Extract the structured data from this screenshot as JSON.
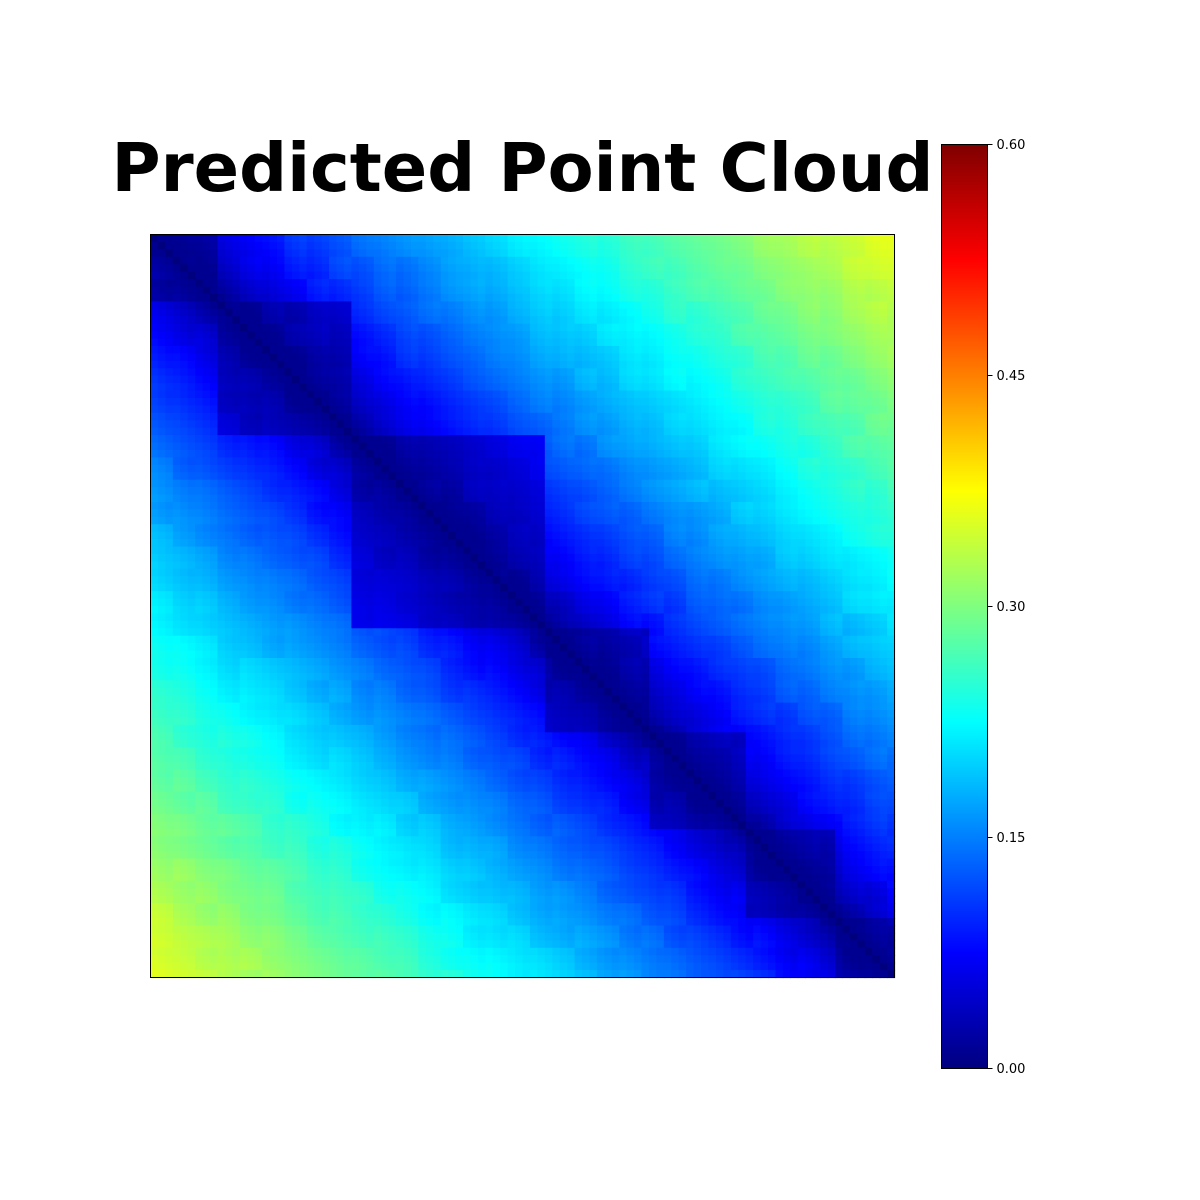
{
  "chart_data": {
    "type": "heatmap",
    "title": "Predicted Point Cloud",
    "xlabel": "",
    "ylabel": "",
    "matrix_size": 100,
    "colormap": "jet",
    "colormap_stops": [
      "#00007f",
      "#0000ff",
      "#007fff",
      "#00ffff",
      "#7fff7f",
      "#ffff00",
      "#ff7f00",
      "#ff0000",
      "#7f0000"
    ],
    "color_range": [
      0.0,
      0.6
    ],
    "colorbar_ticks": [
      "0.00",
      "0.15",
      "0.30",
      "0.45",
      "0.60"
    ],
    "colorbar_tick_values": [
      0.0,
      0.15,
      0.3,
      0.45,
      0.6
    ],
    "axes_ticks_visible": false,
    "grid": false,
    "structure": {
      "diagonal_value": 0.0,
      "corner_max_value": 0.36,
      "blocks": [
        {
          "start": 0,
          "end": 8
        },
        {
          "start": 9,
          "end": 26
        },
        {
          "start": 27,
          "end": 52
        },
        {
          "start": 53,
          "end": 66
        },
        {
          "start": 67,
          "end": 79
        },
        {
          "start": 80,
          "end": 91
        },
        {
          "start": 92,
          "end": 99
        }
      ]
    }
  }
}
